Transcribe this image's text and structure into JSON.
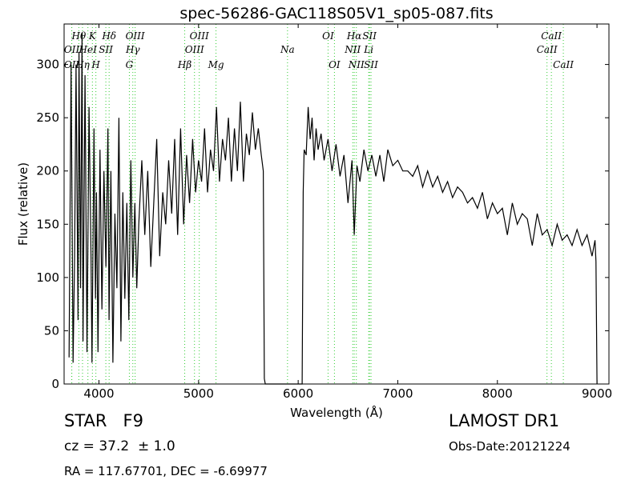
{
  "chart_data": {
    "type": "line",
    "title": "spec-56286-GAC118S05V1_sp05-087.fits",
    "xlabel": "Wavelength (Å)",
    "ylabel": "Flux (relative)",
    "xlim": [
      3650,
      9120
    ],
    "ylim": [
      0,
      338
    ],
    "xticks": [
      4000,
      5000,
      6000,
      7000,
      8000,
      9000
    ],
    "yticks": [
      0,
      50,
      100,
      150,
      200,
      250,
      300
    ],
    "grid": false,
    "series": [
      {
        "color": "#000000",
        "x": [
          3700,
          3720,
          3740,
          3755,
          3770,
          3790,
          3800,
          3815,
          3830,
          3840,
          3860,
          3880,
          3900,
          3920,
          3930,
          3950,
          3965,
          3975,
          3990,
          4010,
          4030,
          4050,
          4070,
          4090,
          4101,
          4120,
          4140,
          4160,
          4180,
          4200,
          4220,
          4240,
          4260,
          4280,
          4300,
          4320,
          4340,
          4360,
          4380,
          4400,
          4430,
          4460,
          4490,
          4520,
          4550,
          4580,
          4610,
          4640,
          4670,
          4700,
          4730,
          4760,
          4790,
          4820,
          4850,
          4880,
          4910,
          4940,
          4970,
          5000,
          5030,
          5060,
          5090,
          5120,
          5150,
          5180,
          5210,
          5240,
          5270,
          5300,
          5330,
          5360,
          5390,
          5420,
          5450,
          5480,
          5510,
          5540,
          5570,
          5600,
          5630,
          5650,
          5660,
          5670,
          5690,
          5710,
          5750,
          5800,
          5850,
          5900,
          5950,
          6000,
          6030,
          6040,
          6050,
          6060,
          6080,
          6100,
          6120,
          6140,
          6160,
          6180,
          6200,
          6230,
          6260,
          6300,
          6340,
          6380,
          6420,
          6460,
          6500,
          6540,
          6563,
          6590,
          6620,
          6660,
          6700,
          6740,
          6780,
          6820,
          6860,
          6900,
          6950,
          7000,
          7050,
          7100,
          7150,
          7200,
          7250,
          7300,
          7350,
          7400,
          7450,
          7500,
          7550,
          7600,
          7650,
          7700,
          7750,
          7800,
          7850,
          7900,
          7950,
          8000,
          8050,
          8100,
          8150,
          8200,
          8250,
          8300,
          8350,
          8400,
          8450,
          8500,
          8550,
          8600,
          8650,
          8700,
          8750,
          8800,
          8850,
          8900,
          8950,
          8980,
          8990,
          9000
        ],
        "y": [
          25,
          300,
          20,
          120,
          300,
          60,
          312,
          90,
          330,
          40,
          290,
          30,
          260,
          120,
          20,
          240,
          80,
          180,
          30,
          220,
          70,
          200,
          110,
          240,
          60,
          200,
          20,
          160,
          90,
          250,
          40,
          180,
          80,
          170,
          60,
          210,
          100,
          170,
          90,
          150,
          210,
          140,
          200,
          110,
          170,
          230,
          120,
          180,
          150,
          210,
          160,
          230,
          140,
          240,
          150,
          215,
          170,
          230,
          180,
          210,
          190,
          240,
          180,
          220,
          200,
          260,
          190,
          230,
          210,
          250,
          190,
          240,
          200,
          265,
          190,
          235,
          215,
          255,
          220,
          240,
          215,
          200,
          5,
          0,
          0,
          0,
          0,
          0,
          0,
          0,
          0,
          0,
          0,
          0,
          180,
          220,
          215,
          260,
          230,
          250,
          210,
          240,
          220,
          235,
          210,
          230,
          200,
          225,
          195,
          215,
          170,
          210,
          140,
          205,
          190,
          220,
          200,
          215,
          195,
          215,
          190,
          220,
          205,
          210,
          200,
          200,
          195,
          205,
          185,
          200,
          185,
          195,
          180,
          190,
          175,
          185,
          180,
          170,
          175,
          165,
          180,
          155,
          170,
          160,
          165,
          140,
          170,
          150,
          160,
          155,
          130,
          160,
          140,
          145,
          130,
          150,
          135,
          140,
          130,
          145,
          130,
          140,
          120,
          135,
          115,
          0
        ]
      }
    ],
    "annotations": [
      {
        "label": "Hθ",
        "x": 3798,
        "row": 1
      },
      {
        "label": "OII",
        "x": 3727,
        "row": 2
      },
      {
        "label": "OII",
        "x": 3727,
        "row": 3
      },
      {
        "label": "Hη",
        "x": 3835,
        "row": 3
      },
      {
        "label": "K",
        "x": 3934,
        "row": 1
      },
      {
        "label": "HeI",
        "x": 3889,
        "row": 2
      },
      {
        "label": "SII",
        "x": 4069,
        "row": 2
      },
      {
        "label": "H",
        "x": 3969,
        "row": 3
      },
      {
        "label": "Hδ",
        "x": 4102,
        "row": 1
      },
      {
        "label": "OIII",
        "x": 4363,
        "row": 1
      },
      {
        "label": "Hγ",
        "x": 4340,
        "row": 2
      },
      {
        "label": "G",
        "x": 4305,
        "row": 3
      },
      {
        "label": "OIII",
        "x": 5007,
        "row": 1
      },
      {
        "label": "Hβ",
        "x": 4861,
        "row": 3
      },
      {
        "label": "OIII",
        "x": 4959,
        "row": 2
      },
      {
        "label": "Mg",
        "x": 5175,
        "row": 3
      },
      {
        "label": "Na",
        "x": 5893,
        "row": 2
      },
      {
        "label": "OI",
        "x": 6300,
        "row": 1
      },
      {
        "label": "OI",
        "x": 6364,
        "row": 3
      },
      {
        "label": "Hα",
        "x": 6563,
        "row": 1
      },
      {
        "label": "SII",
        "x": 6716,
        "row": 1
      },
      {
        "label": "NII",
        "x": 6548,
        "row": 2
      },
      {
        "label": "Li",
        "x": 6708,
        "row": 2
      },
      {
        "label": "NII",
        "x": 6584,
        "row": 3
      },
      {
        "label": "SII",
        "x": 6731,
        "row": 3
      },
      {
        "label": "CaII",
        "x": 8542,
        "row": 1
      },
      {
        "label": "CaII",
        "x": 8498,
        "row": 2
      },
      {
        "label": "CaII",
        "x": 8662,
        "row": 3
      }
    ],
    "line_color": "#33cc33"
  },
  "info": {
    "class_text": "STAR   F9",
    "cz_text": "cz = 37.2  ± 1.0",
    "radec_text": "RA = 117.67701, DEC = -6.69977",
    "survey_text": "LAMOST DR1",
    "obsdate_text": "Obs-Date:20121224"
  }
}
